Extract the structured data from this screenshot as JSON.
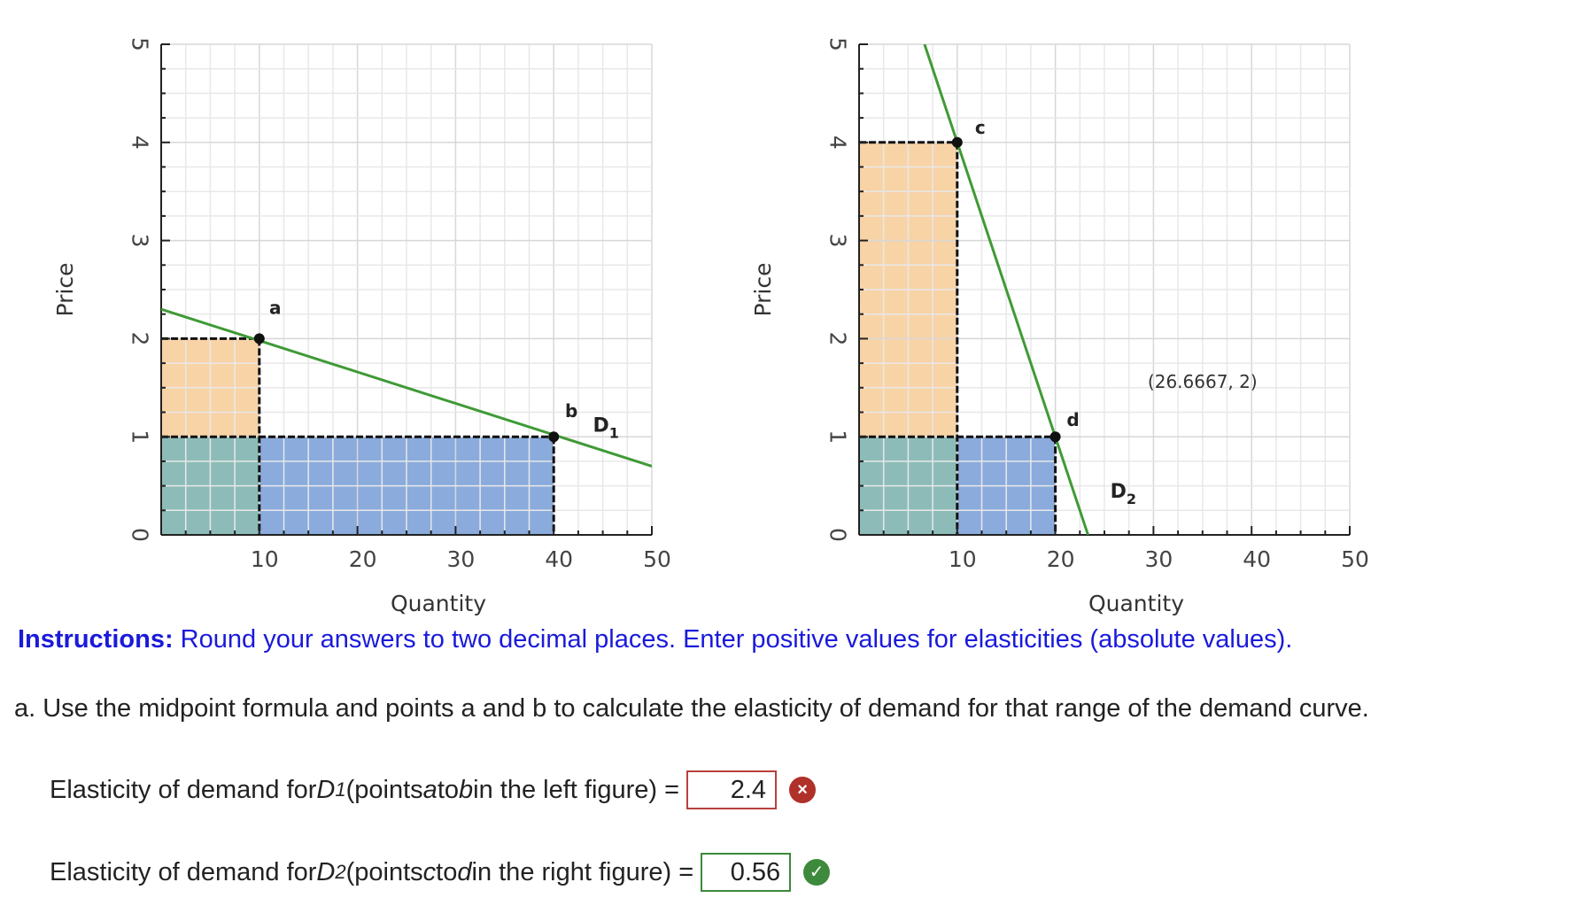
{
  "chart_data": [
    {
      "type": "line",
      "xlabel": "Quantity",
      "ylabel": "Price",
      "xlim": [
        0,
        50
      ],
      "ylim": [
        0,
        5
      ],
      "xticks": [
        "10",
        "20",
        "30",
        "40",
        "50"
      ],
      "yticks": [
        "0",
        "1",
        "2",
        "3",
        "4",
        "5"
      ],
      "grid": true,
      "curve": {
        "label_main": "D",
        "label_sub": "1",
        "x": [
          0,
          50
        ],
        "y": [
          2.3,
          0.7
        ],
        "color": "#3f9a36"
      },
      "points": [
        {
          "label": "a",
          "x": 10,
          "y": 2
        },
        {
          "label": "b",
          "x": 40,
          "y": 1
        }
      ],
      "regions": [
        {
          "x0": 0,
          "x1": 10,
          "y0": 1,
          "y1": 2,
          "color": "#f8d3a6"
        },
        {
          "x0": 0,
          "x1": 10,
          "y0": 0,
          "y1": 1,
          "color": "#8dbcb8"
        },
        {
          "x0": 10,
          "x1": 40,
          "y0": 0,
          "y1": 1,
          "color": "#8aabdc"
        }
      ]
    },
    {
      "type": "line",
      "xlabel": "Quantity",
      "ylabel": "Price",
      "xlim": [
        0,
        50
      ],
      "ylim": [
        0,
        5
      ],
      "xticks": [
        "10",
        "20",
        "30",
        "40",
        "50"
      ],
      "yticks": [
        "0",
        "1",
        "2",
        "3",
        "4",
        "5"
      ],
      "grid": true,
      "curve": {
        "label_main": "D",
        "label_sub": "2",
        "x": [
          6.67,
          23.33
        ],
        "y": [
          5,
          0
        ],
        "color": "#3f9a36"
      },
      "points": [
        {
          "label": "c",
          "x": 10,
          "y": 4
        },
        {
          "label": "d",
          "x": 20,
          "y": 1
        }
      ],
      "annotations": [
        {
          "text": "(26.6667, 2)",
          "x": 35,
          "y": 1.5
        }
      ],
      "regions": [
        {
          "x0": 0,
          "x1": 10,
          "y0": 1,
          "y1": 4,
          "color": "#f8d3a6"
        },
        {
          "x0": 0,
          "x1": 10,
          "y0": 0,
          "y1": 1,
          "color": "#8dbcb8"
        },
        {
          "x0": 10,
          "x1": 20,
          "y0": 0,
          "y1": 1,
          "color": "#8aabdc"
        }
      ]
    }
  ],
  "instructions": {
    "label": "Instructions:",
    "text": " Round your answers to two decimal places. Enter positive values for elasticities (absolute values)."
  },
  "question_a": "a. Use the midpoint formula and points a and b to calculate the elasticity of demand for that range of the demand curve.",
  "answers": [
    {
      "prefix": "Elasticity of demand for ",
      "d_main": "D",
      "d_sub": "1",
      "mid1": "(points ",
      "p1": "a",
      "mid2": " to ",
      "p2": "b",
      "suffix": " in the left figure) = ",
      "value": "2.4",
      "status": "wrong",
      "status_icon": "×"
    },
    {
      "prefix": "Elasticity of demand for ",
      "d_main": "D",
      "d_sub": "2",
      "mid1": " (points ",
      "p1": "c",
      "mid2": " to ",
      "p2": "d",
      "suffix": " in the right figure) = ",
      "value": "0.56",
      "status": "right",
      "status_icon": "✓"
    }
  ]
}
